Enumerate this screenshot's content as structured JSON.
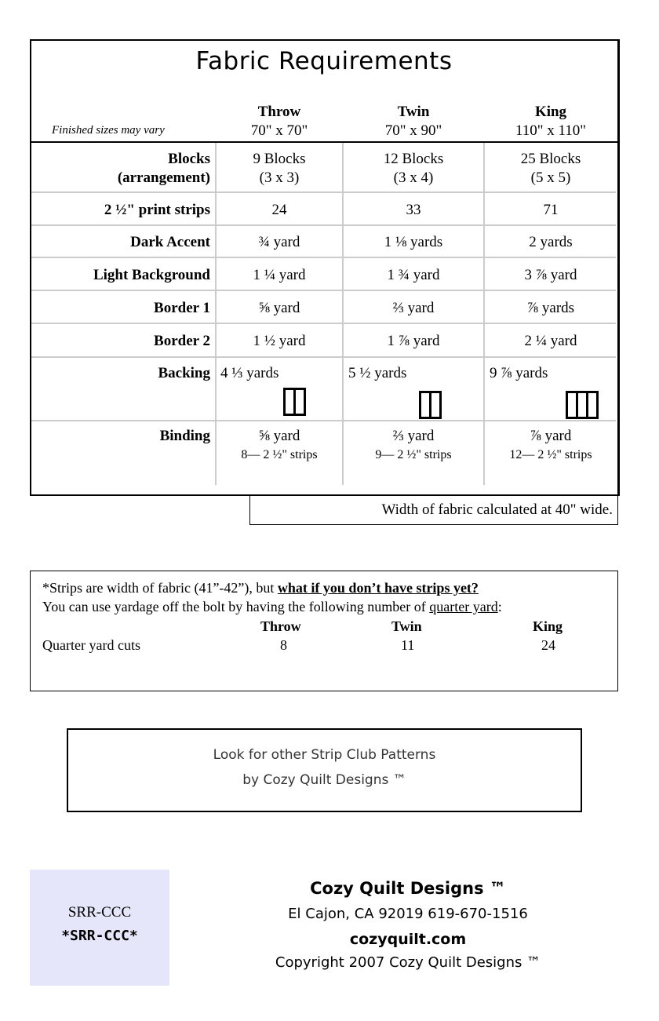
{
  "title": "Fabric Requirements",
  "sizes_note": "Finished sizes may vary",
  "columns": [
    {
      "name": "Throw",
      "size": "70\" x 70\""
    },
    {
      "name": "Twin",
      "size": "70\" x 90\""
    },
    {
      "name": "King",
      "size": "110\" x 110\""
    }
  ],
  "rows": [
    {
      "label": "Blocks",
      "label2": "(arrangement)",
      "values": [
        "9 Blocks",
        "12 Blocks",
        "25 Blocks"
      ],
      "values2": [
        "(3 x 3)",
        "(3 x 4)",
        "(5 x 5)"
      ]
    },
    {
      "label": "2 ½\" print strips",
      "values": [
        "24",
        "33",
        "71"
      ]
    },
    {
      "label": "Dark Accent",
      "values": [
        "¾ yard",
        "1 ⅛ yards",
        "2 yards"
      ]
    },
    {
      "label": "Light Background",
      "values": [
        "1 ¼ yard",
        "1 ¾ yard",
        "3 ⅞ yard"
      ]
    },
    {
      "label": "Border 1",
      "values": [
        "⅝ yard",
        "⅔ yard",
        "⅞ yards"
      ]
    },
    {
      "label": "Border 2",
      "values": [
        "1 ½ yard",
        "1 ⅞ yard",
        "2 ¼ yard"
      ]
    },
    {
      "label": "Backing",
      "values": [
        "4 ⅓ yards",
        "5 ½ yards",
        "9 ⅞ yards"
      ],
      "panels": [
        2,
        2,
        3
      ]
    },
    {
      "label": "Binding",
      "values": [
        "⅝ yard",
        "⅔ yard",
        "⅞ yard"
      ],
      "values2": [
        "8— 2 ½\" strips",
        "9— 2 ½\" strips",
        "12— 2 ½\" strips"
      ]
    }
  ],
  "width_note": "Width of fabric calculated at 40\" wide.",
  "strips_box": {
    "line1_a": "*Strips are width of fabric (41”-42”), but ",
    "line1_b": "what if you don’t have strips yet?",
    "line2_a": "You can use yardage off the bolt by having the following number of ",
    "line2_b": "quarter yard",
    "line2_c": ":",
    "headers": [
      "Throw",
      "Twin",
      "King"
    ],
    "row_label": "Quarter yard cuts",
    "values": [
      "8",
      "11",
      "24"
    ]
  },
  "promo": {
    "line1": "Look for other Strip Club Patterns",
    "line2": "by Cozy Quilt Designs ™"
  },
  "sku": {
    "code": "SRR-CCC",
    "barcode_text": "*SRR-CCC*",
    "color": "#e6e6fa"
  },
  "footer": {
    "company": "Cozy Quilt Designs ™",
    "address": "El Cajon, CA 92019 619-670-1516",
    "website": "cozyquilt.com",
    "copyright": "Copyright 2007 Cozy Quilt Designs ™"
  }
}
